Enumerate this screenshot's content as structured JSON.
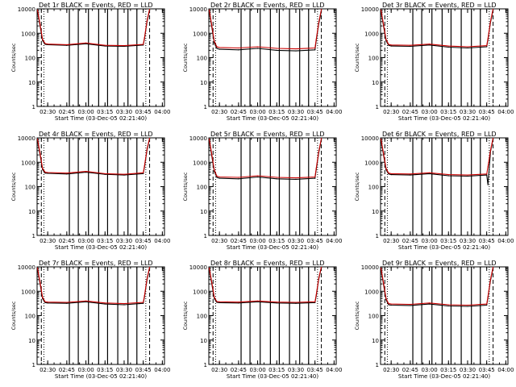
{
  "figure": {
    "x_tick_labels": [
      "02:30",
      "02:45",
      "03:00",
      "03:15",
      "03:30",
      "03:45",
      "04:00"
    ],
    "y_tick_labels": [
      "1",
      "10",
      "100",
      "1000",
      "10000"
    ],
    "ylabel": "Counts/sec",
    "xlabel": "Start Time (03-Dec-05 02:21:40)",
    "colors": {
      "events": "#000000",
      "lld": "#cc0000"
    }
  },
  "chart_data": [
    {
      "type": "line",
      "title": "Det 1r BLACK = Events, RED = LLD",
      "xlabel": "Start Time (03-Dec-05 02:21:40)",
      "ylabel": "Counts/sec",
      "yscale": "log",
      "ylim": [
        1,
        10000
      ],
      "x_range": [
        "02:21:40",
        "04:01:40"
      ],
      "x_ticks": [
        "02:30",
        "02:45",
        "03:00",
        "03:15",
        "03:30",
        "03:45",
        "04:00"
      ],
      "series": [
        {
          "name": "Events",
          "color": "#000000",
          "x": [
            "02:22",
            "02:24",
            "02:26",
            "02:28",
            "02:30",
            "02:45",
            "03:00",
            "03:15",
            "03:30",
            "03:45",
            "03:46",
            "03:48",
            "03:50"
          ],
          "values": [
            8000,
            2000,
            500,
            350,
            340,
            320,
            370,
            300,
            290,
            330,
            600,
            3000,
            9000
          ]
        },
        {
          "name": "LLD",
          "color": "#cc0000",
          "x": [
            "02:22",
            "02:24",
            "02:26",
            "02:28",
            "02:30",
            "02:45",
            "03:00",
            "03:15",
            "03:30",
            "03:45",
            "03:46",
            "03:48",
            "03:50"
          ],
          "values": [
            9000,
            2300,
            560,
            380,
            360,
            340,
            400,
            320,
            310,
            350,
            650,
            3300,
            10000
          ]
        }
      ]
    },
    {
      "type": "line",
      "title": "Det 2r BLACK = Events, RED = LLD",
      "xlabel": "Start Time (03-Dec-05 02:21:40)",
      "ylabel": "Counts/sec",
      "yscale": "log",
      "ylim": [
        1,
        10000
      ],
      "x_range": [
        "02:21:40",
        "04:01:40"
      ],
      "x_ticks": [
        "02:30",
        "02:45",
        "03:00",
        "03:15",
        "03:30",
        "03:45",
        "04:00"
      ],
      "series": [
        {
          "name": "Events",
          "color": "#000000",
          "x": [
            "02:22",
            "02:24",
            "02:26",
            "02:28",
            "02:30",
            "02:45",
            "03:00",
            "03:15",
            "03:30",
            "03:45",
            "03:46",
            "03:48",
            "03:50"
          ],
          "values": [
            8000,
            1800,
            400,
            240,
            220,
            210,
            240,
            200,
            190,
            210,
            500,
            2500,
            8000
          ]
        },
        {
          "name": "LLD",
          "color": "#cc0000",
          "x": [
            "02:22",
            "02:24",
            "02:26",
            "02:28",
            "02:30",
            "02:45",
            "03:00",
            "03:15",
            "03:30",
            "03:45",
            "03:46",
            "03:48",
            "03:50"
          ],
          "values": [
            9000,
            2100,
            470,
            280,
            260,
            250,
            280,
            240,
            230,
            250,
            560,
            2800,
            9500
          ]
        }
      ]
    },
    {
      "type": "line",
      "title": "Det 3r BLACK = Events, RED = LLD",
      "xlabel": "Start Time (03-Dec-05 02:21:40)",
      "ylabel": "Counts/sec",
      "yscale": "log",
      "ylim": [
        1,
        10000
      ],
      "x_range": [
        "02:21:40",
        "04:01:40"
      ],
      "x_ticks": [
        "02:30",
        "02:45",
        "03:00",
        "03:15",
        "03:30",
        "03:45",
        "04:00"
      ],
      "series": [
        {
          "name": "Events",
          "color": "#000000",
          "x": [
            "02:22",
            "02:24",
            "02:26",
            "02:28",
            "02:30",
            "02:45",
            "03:00",
            "03:15",
            "03:30",
            "03:45",
            "03:46",
            "03:48",
            "03:50"
          ],
          "values": [
            8000,
            2000,
            500,
            320,
            300,
            290,
            330,
            270,
            250,
            280,
            550,
            2800,
            9000
          ]
        },
        {
          "name": "LLD",
          "color": "#cc0000",
          "x": [
            "02:22",
            "02:24",
            "02:26",
            "02:28",
            "02:30",
            "02:45",
            "03:00",
            "03:15",
            "03:30",
            "03:45",
            "03:46",
            "03:48",
            "03:50"
          ],
          "values": [
            9000,
            2300,
            560,
            350,
            330,
            320,
            360,
            300,
            280,
            310,
            600,
            3100,
            10000
          ]
        }
      ]
    },
    {
      "type": "line",
      "title": "Det 4r BLACK = Events, RED = LLD",
      "xlabel": "Start Time (03-Dec-05 02:21:40)",
      "ylabel": "Counts/sec",
      "yscale": "log",
      "ylim": [
        1,
        10000
      ],
      "x_range": [
        "02:21:40",
        "04:01:40"
      ],
      "x_ticks": [
        "02:30",
        "02:45",
        "03:00",
        "03:15",
        "03:30",
        "03:45",
        "04:00"
      ],
      "series": [
        {
          "name": "Events",
          "color": "#000000",
          "x": [
            "02:22",
            "02:24",
            "02:26",
            "02:28",
            "02:30",
            "02:45",
            "03:00",
            "03:15",
            "03:30",
            "03:45",
            "03:46",
            "03:48",
            "03:50"
          ],
          "values": [
            8000,
            2000,
            500,
            360,
            350,
            330,
            390,
            320,
            300,
            340,
            650,
            3200,
            9500
          ]
        },
        {
          "name": "LLD",
          "color": "#cc0000",
          "x": [
            "02:22",
            "02:24",
            "02:26",
            "02:28",
            "02:30",
            "02:45",
            "03:00",
            "03:15",
            "03:30",
            "03:45",
            "03:46",
            "03:48",
            "03:50"
          ],
          "values": [
            9000,
            2300,
            560,
            390,
            380,
            360,
            420,
            340,
            320,
            370,
            700,
            3500,
            10000
          ]
        }
      ]
    },
    {
      "type": "line",
      "title": "Det 5r BLACK = Events, RED = LLD",
      "xlabel": "Start Time (03-Dec-05 02:21:40)",
      "ylabel": "Counts/sec",
      "yscale": "log",
      "ylim": [
        1,
        10000
      ],
      "x_range": [
        "02:21:40",
        "04:01:40"
      ],
      "x_ticks": [
        "02:30",
        "02:45",
        "03:00",
        "03:15",
        "03:30",
        "03:45",
        "04:00"
      ],
      "series": [
        {
          "name": "Events",
          "color": "#000000",
          "x": [
            "02:22",
            "02:24",
            "02:26",
            "02:28",
            "02:30",
            "02:45",
            "03:00",
            "03:15",
            "03:30",
            "03:45",
            "03:46",
            "03:48",
            "03:50"
          ],
          "values": [
            8000,
            1800,
            420,
            240,
            220,
            210,
            250,
            210,
            200,
            220,
            500,
            2500,
            8500
          ]
        },
        {
          "name": "LLD",
          "color": "#cc0000",
          "x": [
            "02:22",
            "02:24",
            "02:26",
            "02:28",
            "02:30",
            "02:45",
            "03:00",
            "03:15",
            "03:30",
            "03:45",
            "03:46",
            "03:48",
            "03:50"
          ],
          "values": [
            9000,
            2100,
            480,
            270,
            250,
            240,
            280,
            240,
            230,
            250,
            560,
            2800,
            9500
          ]
        }
      ]
    },
    {
      "type": "line",
      "title": "Det 6r BLACK = Events, RED = LLD",
      "xlabel": "Start Time (03-Dec-05 02:21:40)",
      "ylabel": "Counts/sec",
      "yscale": "log",
      "ylim": [
        1,
        10000
      ],
      "x_range": [
        "02:21:40",
        "04:01:40"
      ],
      "x_ticks": [
        "02:30",
        "02:45",
        "03:00",
        "03:15",
        "03:30",
        "03:45",
        "04:00"
      ],
      "series": [
        {
          "name": "Events",
          "color": "#000000",
          "x": [
            "02:22",
            "02:24",
            "02:26",
            "02:28",
            "02:30",
            "02:45",
            "03:00",
            "03:15",
            "03:30",
            "03:45",
            "03:46",
            "03:48",
            "03:50"
          ],
          "values": [
            8000,
            2000,
            500,
            330,
            310,
            300,
            340,
            280,
            270,
            300,
            120,
            2800,
            9000
          ]
        },
        {
          "name": "LLD",
          "color": "#cc0000",
          "x": [
            "02:22",
            "02:24",
            "02:26",
            "02:28",
            "02:30",
            "02:45",
            "03:00",
            "03:15",
            "03:30",
            "03:45",
            "03:46",
            "03:48",
            "03:50"
          ],
          "values": [
            9000,
            2300,
            560,
            360,
            340,
            330,
            370,
            310,
            300,
            330,
            650,
            3100,
            10000
          ]
        }
      ]
    },
    {
      "type": "line",
      "title": "Det 7r BLACK = Events, RED = LLD",
      "xlabel": "Start Time (03-Dec-05 02:21:40)",
      "ylabel": "Counts/sec",
      "yscale": "log",
      "ylim": [
        1,
        10000
      ],
      "x_range": [
        "02:21:40",
        "04:01:40"
      ],
      "x_ticks": [
        "02:30",
        "02:45",
        "03:00",
        "03:15",
        "03:30",
        "03:45",
        "04:00"
      ],
      "series": [
        {
          "name": "Events",
          "color": "#000000",
          "x": [
            "02:22",
            "02:24",
            "02:26",
            "02:28",
            "02:30",
            "02:45",
            "03:00",
            "03:15",
            "03:30",
            "03:45",
            "03:46",
            "03:48",
            "03:50"
          ],
          "values": [
            8000,
            2000,
            500,
            340,
            330,
            320,
            370,
            300,
            280,
            320,
            600,
            3000,
            9000
          ]
        },
        {
          "name": "LLD",
          "color": "#cc0000",
          "x": [
            "02:22",
            "02:24",
            "02:26",
            "02:28",
            "02:30",
            "02:45",
            "03:00",
            "03:15",
            "03:30",
            "03:45",
            "03:46",
            "03:48",
            "03:50"
          ],
          "values": [
            9000,
            2300,
            560,
            370,
            360,
            350,
            400,
            330,
            310,
            350,
            650,
            3300,
            10000
          ]
        }
      ]
    },
    {
      "type": "line",
      "title": "Det 8r BLACK = Events, RED = LLD",
      "xlabel": "Start Time (03-Dec-05 02:21:40)",
      "ylabel": "Counts/sec",
      "yscale": "log",
      "ylim": [
        1,
        10000
      ],
      "x_range": [
        "02:21:40",
        "04:01:40"
      ],
      "x_ticks": [
        "02:30",
        "02:45",
        "03:00",
        "03:15",
        "03:30",
        "03:45",
        "04:00"
      ],
      "series": [
        {
          "name": "Events",
          "color": "#000000",
          "x": [
            "02:22",
            "02:24",
            "02:26",
            "02:28",
            "02:30",
            "02:45",
            "03:00",
            "03:15",
            "03:30",
            "03:45",
            "03:46",
            "03:48",
            "03:50"
          ],
          "values": [
            8000,
            2000,
            500,
            350,
            340,
            330,
            370,
            330,
            320,
            340,
            650,
            3200,
            9500
          ]
        },
        {
          "name": "LLD",
          "color": "#cc0000",
          "x": [
            "02:22",
            "02:24",
            "02:26",
            "02:28",
            "02:30",
            "02:45",
            "03:00",
            "03:15",
            "03:30",
            "03:45",
            "03:46",
            "03:48",
            "03:50"
          ],
          "values": [
            9000,
            2300,
            560,
            380,
            370,
            360,
            400,
            360,
            350,
            370,
            700,
            3500,
            10000
          ]
        }
      ]
    },
    {
      "type": "line",
      "title": "Det 9r BLACK = Events, RED = LLD",
      "xlabel": "Start Time (03-Dec-05 02:21:40)",
      "ylabel": "Counts/sec",
      "yscale": "log",
      "ylim": [
        1,
        10000
      ],
      "x_range": [
        "02:21:40",
        "04:01:40"
      ],
      "x_ticks": [
        "02:30",
        "02:45",
        "03:00",
        "03:15",
        "03:30",
        "03:45",
        "04:00"
      ],
      "series": [
        {
          "name": "Events",
          "color": "#000000",
          "x": [
            "02:22",
            "02:24",
            "02:26",
            "02:28",
            "02:30",
            "02:45",
            "03:00",
            "03:15",
            "03:30",
            "03:45",
            "03:46",
            "03:48",
            "03:50"
          ],
          "values": [
            8000,
            1900,
            450,
            280,
            270,
            260,
            300,
            250,
            240,
            270,
            550,
            2800,
            9000
          ]
        },
        {
          "name": "LLD",
          "color": "#cc0000",
          "x": [
            "02:22",
            "02:24",
            "02:26",
            "02:28",
            "02:30",
            "02:45",
            "03:00",
            "03:15",
            "03:30",
            "03:45",
            "03:46",
            "03:48",
            "03:50"
          ],
          "values": [
            9000,
            2200,
            510,
            310,
            300,
            290,
            330,
            280,
            270,
            300,
            600,
            3100,
            10000
          ]
        }
      ]
    }
  ]
}
